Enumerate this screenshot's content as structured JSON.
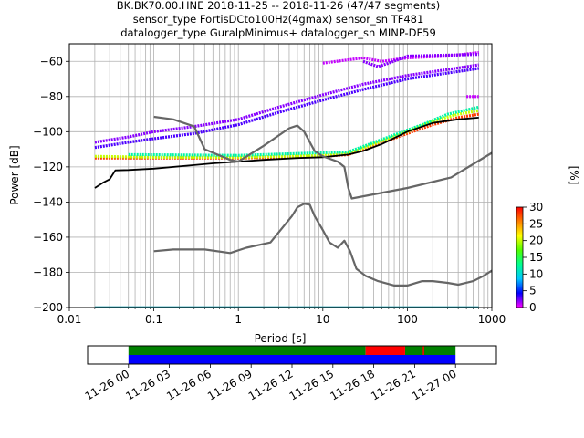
{
  "title_lines": [
    "BK.BK70.00.HNE   2018-11-25 -- 2018-11-26  (47/47 segments)",
    "sensor_type FortisDCto100Hz(4gmax) sensor_sn TF481",
    "datalogger_type GuralpMinimus+ datalogger_sn MINP-DF59"
  ],
  "colors": {
    "psd_mode": "#000000",
    "noise_models": "#666666",
    "grid": "#b0b0b0",
    "coverage_data": "#0000ff",
    "coverage_gaps_ok": "#008000",
    "coverage_overlap": "#ff0000"
  },
  "chart_data": [
    {
      "type": "heatmap",
      "xlabel": "Period [s]",
      "ylabel": "Power [dB]",
      "x_scale": "log",
      "xlim": [
        0.01,
        1000
      ],
      "ylim": [
        -200,
        -50
      ],
      "x_ticks": [
        0.01,
        0.1,
        1,
        10,
        100,
        1000
      ],
      "x_tick_labels": [
        "0.01",
        "0.1",
        "1",
        "10",
        "100",
        "1000"
      ],
      "y_ticks": [
        -200,
        -180,
        -160,
        -140,
        -120,
        -100,
        -80,
        -60
      ],
      "y_tick_labels": [
        "−200",
        "−180",
        "−160",
        "−140",
        "−120",
        "−100",
        "−80",
        "−60"
      ],
      "grid": true,
      "colorbar": {
        "label": "[%]",
        "range": [
          0,
          30
        ],
        "ticks": [
          0,
          5,
          10,
          15,
          20,
          25,
          30
        ],
        "tick_labels": [
          "0",
          "5",
          "10",
          "15",
          "20",
          "25",
          "30"
        ],
        "colormap": [
          "#ff00ff",
          "#0000ff",
          "#00c8ff",
          "#00ff90",
          "#50ff00",
          "#ffff00",
          "#ff8000",
          "#ff0000"
        ]
      },
      "series": [
        {
          "role": "psd_mode",
          "points": [
            [
              0.02,
              -132
            ],
            [
              0.025,
              -129
            ],
            [
              0.03,
              -127
            ],
            [
              0.035,
              -122
            ],
            [
              0.05,
              -121.8
            ],
            [
              0.1,
              -121
            ],
            [
              0.3,
              -119
            ],
            [
              0.5,
              -118
            ],
            [
              1,
              -117
            ],
            [
              2,
              -116
            ],
            [
              5,
              -115
            ],
            [
              10,
              -114.5
            ],
            [
              20,
              -113
            ],
            [
              30,
              -111
            ],
            [
              50,
              -107
            ],
            [
              100,
              -100
            ],
            [
              200,
              -95
            ],
            [
              400,
              -93
            ],
            [
              700,
              -92
            ]
          ]
        },
        {
          "role": "noise_model_high",
          "points": [
            [
              0.1,
              -91.5
            ],
            [
              0.17,
              -93
            ],
            [
              0.3,
              -97
            ],
            [
              0.4,
              -110
            ],
            [
              0.8,
              -116
            ],
            [
              1,
              -117
            ],
            [
              2,
              -108
            ],
            [
              4,
              -98
            ],
            [
              5,
              -96.5
            ],
            [
              6,
              -100
            ],
            [
              8,
              -111
            ],
            [
              10,
              -114
            ],
            [
              15,
              -117
            ],
            [
              18,
              -120
            ],
            [
              20,
              -132
            ],
            [
              22,
              -138
            ],
            [
              100,
              -132
            ],
            [
              330,
              -126
            ],
            [
              1000,
              -112
            ]
          ]
        },
        {
          "role": "noise_model_low",
          "points": [
            [
              0.1,
              -168
            ],
            [
              0.17,
              -167
            ],
            [
              0.4,
              -167
            ],
            [
              0.8,
              -169
            ],
            [
              1.24,
              -166
            ],
            [
              2.4,
              -163
            ],
            [
              4.3,
              -148
            ],
            [
              5,
              -143
            ],
            [
              6,
              -141
            ],
            [
              7,
              -141.5
            ],
            [
              8,
              -148
            ],
            [
              10,
              -156
            ],
            [
              12,
              -163
            ],
            [
              15,
              -166
            ],
            [
              18,
              -162
            ],
            [
              21,
              -168
            ],
            [
              25,
              -178
            ],
            [
              32,
              -182
            ],
            [
              45,
              -185
            ],
            [
              70,
              -187.5
            ],
            [
              100,
              -187.5
            ],
            [
              150,
              -185
            ],
            [
              200,
              -185
            ],
            [
              300,
              -186
            ],
            [
              400,
              -187
            ],
            [
              600,
              -185
            ],
            [
              800,
              -182
            ],
            [
              1000,
              -179
            ]
          ]
        }
      ],
      "heatmap_bands": [
        {
          "level": 28,
          "points": [
            [
              0.02,
              -115
            ],
            [
              0.1,
              -115
            ],
            [
              1,
              -115
            ],
            [
              10,
              -114
            ],
            [
              20,
              -113
            ],
            [
              40,
              -108
            ],
            [
              100,
              -101
            ],
            [
              200,
              -96
            ],
            [
              400,
              -92
            ],
            [
              700,
              -90
            ]
          ]
        },
        {
          "level": 20,
          "points": [
            [
              0.02,
              -114
            ],
            [
              0.1,
              -114.5
            ],
            [
              1,
              -114.5
            ],
            [
              10,
              -113.5
            ],
            [
              20,
              -112.5
            ],
            [
              40,
              -107
            ],
            [
              100,
              -100
            ],
            [
              200,
              -94
            ],
            [
              400,
              -90
            ],
            [
              700,
              -88
            ]
          ]
        },
        {
          "level": 12,
          "points": [
            [
              0.05,
              -113
            ],
            [
              1,
              -113.5
            ],
            [
              20,
              -111.5
            ],
            [
              60,
              -103
            ],
            [
              150,
              -96
            ],
            [
              300,
              -90
            ],
            [
              700,
              -86
            ]
          ]
        },
        {
          "level": 3,
          "points": [
            [
              0.02,
              -109
            ],
            [
              0.05,
              -106
            ],
            [
              0.1,
              -104
            ],
            [
              0.3,
              -101
            ],
            [
              1,
              -96
            ],
            [
              3,
              -89
            ],
            [
              10,
              -82
            ],
            [
              30,
              -76
            ],
            [
              100,
              -70
            ],
            [
              700,
              -64
            ]
          ]
        },
        {
          "level": 2,
          "points": [
            [
              0.02,
              -106
            ],
            [
              0.05,
              -103
            ],
            [
              0.1,
              -100
            ],
            [
              0.3,
              -97
            ],
            [
              1,
              -93
            ],
            [
              3,
              -86
            ],
            [
              10,
              -79
            ],
            [
              30,
              -73
            ],
            [
              100,
              -68
            ],
            [
              700,
              -62
            ]
          ]
        },
        {
          "level": 1,
          "points": [
            [
              10,
              -61
            ],
            [
              30,
              -58
            ],
            [
              50,
              -60
            ],
            [
              100,
              -58
            ],
            [
              300,
              -57
            ],
            [
              700,
              -55
            ]
          ]
        },
        {
          "level": 2,
          "points": [
            [
              30,
              -60
            ],
            [
              45,
              -63
            ],
            [
              60,
              -61
            ],
            [
              100,
              -57
            ],
            [
              700,
              -56
            ]
          ]
        },
        {
          "level": 1,
          "points": [
            [
              500,
              -80
            ],
            [
              700,
              -80
            ]
          ]
        }
      ]
    },
    {
      "type": "bar",
      "title": "",
      "x_ticks": [
        "11-26 00",
        "11-26 03",
        "11-26 06",
        "11-26 09",
        "11-26 12",
        "11-26 15",
        "11-26 18",
        "11-26 21",
        "11-27 00"
      ],
      "hours_range": [
        -3,
        27
      ],
      "coverage": {
        "data_available": [
          [
            0,
            24
          ]
        ],
        "upper_green": [
          [
            0,
            17.4
          ],
          [
            20.3,
            24
          ]
        ],
        "upper_red": [
          [
            17.4,
            20.3
          ]
        ],
        "red_tick": [
          21.6
        ]
      }
    }
  ]
}
